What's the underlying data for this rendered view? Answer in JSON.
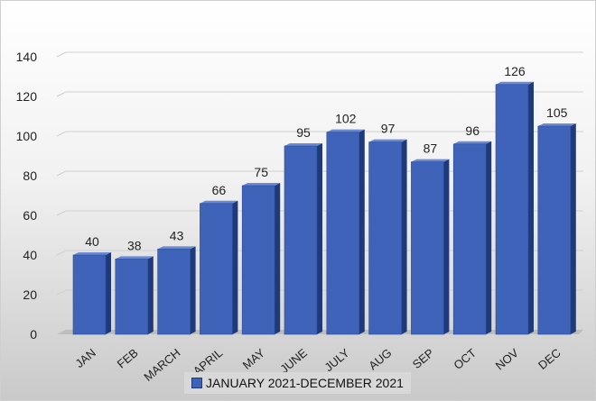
{
  "chart_data": {
    "type": "bar",
    "categories": [
      "JAN",
      "FEB",
      "MARCH",
      "APRIL",
      "MAY",
      "JUNE",
      "JULY",
      "AUG",
      "SEP",
      "OCT",
      "NOV",
      "DEC"
    ],
    "series": [
      {
        "name": "JANUARY 2021-DECEMBER 2021",
        "values": [
          40,
          38,
          43,
          66,
          75,
          95,
          102,
          97,
          87,
          96,
          126,
          105
        ]
      }
    ],
    "title": "",
    "xlabel": "",
    "ylabel": "",
    "ylim": [
      0,
      140
    ],
    "yticks": [
      0,
      20,
      40,
      60,
      80,
      100,
      120,
      140
    ],
    "grid": true,
    "legend_position": "bottom",
    "bar_color": "#3f63b8",
    "bar_side_color": "#1f3a7a",
    "bar_top_color": "#6a8ad6"
  }
}
